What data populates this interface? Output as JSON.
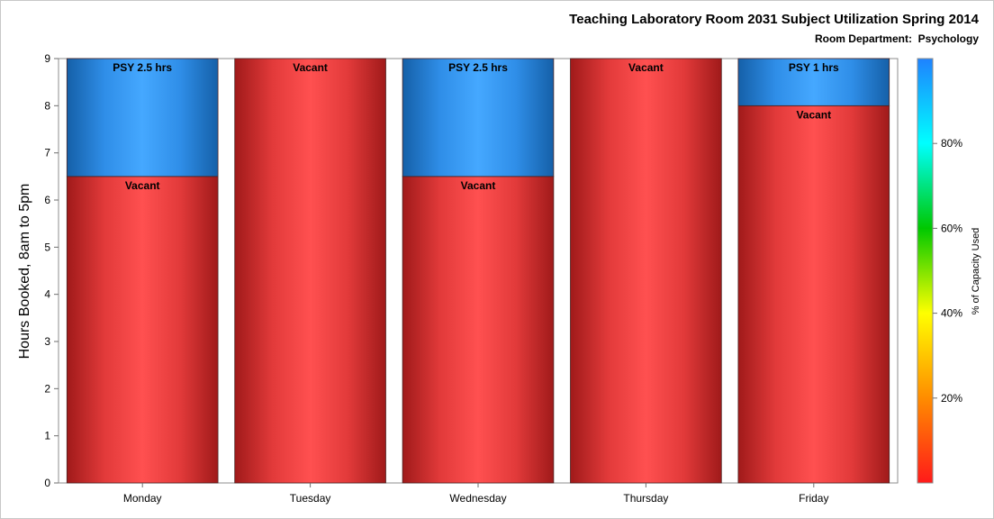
{
  "chart_data": {
    "type": "bar",
    "stacked": true,
    "title": "Teaching Laboratory Room 2031 Subject Utilization Spring 2014",
    "subtitle": "Room Department:  Psychology",
    "xlabel": "",
    "ylabel": "Hours Booked, 8am to 5pm",
    "ylim": [
      0,
      9
    ],
    "yticks": [
      0,
      1,
      2,
      3,
      4,
      5,
      6,
      7,
      8,
      9
    ],
    "grid": false,
    "categories": [
      "Monday",
      "Tuesday",
      "Wednesday",
      "Thursday",
      "Friday"
    ],
    "series": [
      {
        "name": "Vacant",
        "color": "#ff4d4d",
        "values": [
          6.5,
          9,
          6.5,
          9,
          8
        ],
        "labels": [
          "Vacant",
          "Vacant",
          "Vacant",
          "Vacant",
          "Vacant"
        ]
      },
      {
        "name": "PSY",
        "color": "#42a5ff",
        "values": [
          2.5,
          0,
          2.5,
          0,
          1
        ],
        "labels": [
          "PSY 2.5 hrs",
          "",
          "PSY 2.5 hrs",
          "",
          "PSY 1 hrs"
        ]
      }
    ],
    "colorbar": {
      "title": "% of Capacity Used",
      "range": [
        0,
        100
      ],
      "ticks": [
        20,
        40,
        60,
        80
      ],
      "tick_labels": [
        "20%",
        "40%",
        "60%",
        "80%"
      ],
      "stops": [
        "#ff1a1a",
        "#ff8c00",
        "#ffff00",
        "#00c800",
        "#00ffff",
        "#1e82ff"
      ],
      "placement": "right"
    }
  }
}
